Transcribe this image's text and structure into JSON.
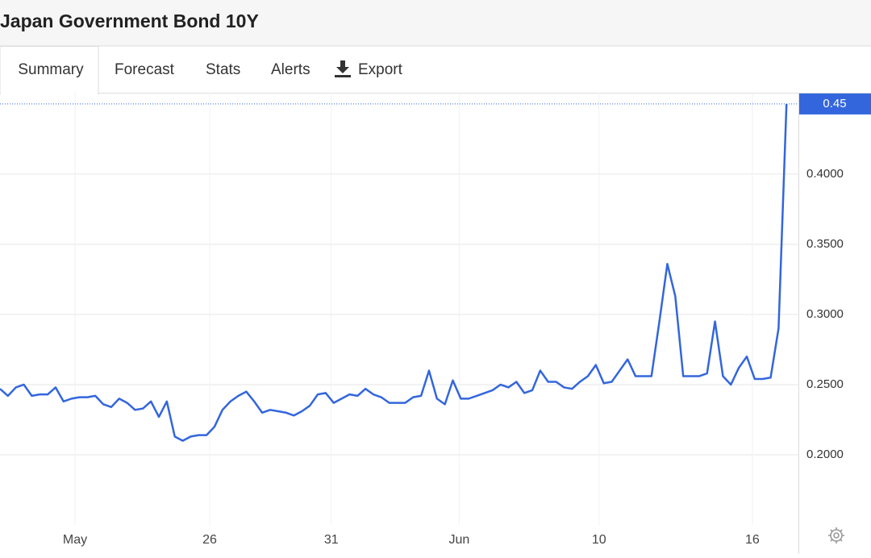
{
  "header": {
    "title": "Japan Government Bond 10Y"
  },
  "tabs": [
    "Summary",
    "Forecast",
    "Stats",
    "Alerts",
    "Export"
  ],
  "chart_data": {
    "type": "line",
    "color": "#3366dd",
    "grid": true,
    "values": [
      0.247,
      0.242,
      0.248,
      0.25,
      0.242,
      0.243,
      0.243,
      0.248,
      0.238,
      0.24,
      0.241,
      0.241,
      0.242,
      0.236,
      0.234,
      0.24,
      0.237,
      0.232,
      0.233,
      0.238,
      0.227,
      0.238,
      0.213,
      0.21,
      0.213,
      0.214,
      0.214,
      0.22,
      0.232,
      0.238,
      0.242,
      0.245,
      0.238,
      0.23,
      0.232,
      0.231,
      0.23,
      0.228,
      0.231,
      0.235,
      0.243,
      0.244,
      0.237,
      0.24,
      0.243,
      0.242,
      0.247,
      0.243,
      0.241,
      0.237,
      0.237,
      0.237,
      0.241,
      0.242,
      0.26,
      0.24,
      0.236,
      0.253,
      0.24,
      0.24,
      0.242,
      0.244,
      0.246,
      0.25,
      0.248,
      0.252,
      0.244,
      0.246,
      0.26,
      0.252,
      0.252,
      0.248,
      0.247,
      0.252,
      0.256,
      0.264,
      0.251,
      0.252,
      0.26,
      0.268,
      0.256,
      0.256,
      0.256,
      0.295,
      0.336,
      0.313,
      0.256,
      0.256,
      0.256,
      0.258,
      0.295,
      0.256,
      0.25,
      0.262,
      0.27,
      0.254,
      0.254,
      0.255,
      0.29,
      0.45
    ],
    "xlim": [
      0,
      100.5
    ],
    "xticks": [
      {
        "value": 9.44,
        "label": "May"
      },
      {
        "value": 26.4,
        "label": "26"
      },
      {
        "value": 41.7,
        "label": "31"
      },
      {
        "value": 57.8,
        "label": "Jun"
      },
      {
        "value": 75.4,
        "label": "10"
      },
      {
        "value": 94.7,
        "label": "16"
      }
    ],
    "ylim": [
      0.15,
      0.458
    ],
    "yticks": [
      {
        "value": 0.2,
        "label": "0.2000"
      },
      {
        "value": 0.25,
        "label": "0.2500"
      },
      {
        "value": 0.3,
        "label": "0.3000"
      },
      {
        "value": 0.35,
        "label": "0.3500"
      },
      {
        "value": 0.4,
        "label": "0.4000"
      }
    ],
    "current_value": 0.45
  }
}
